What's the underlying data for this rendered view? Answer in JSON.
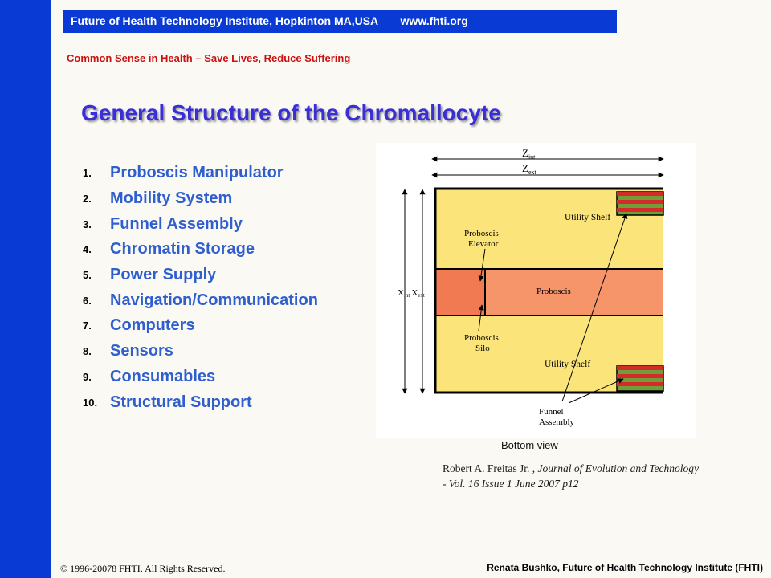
{
  "header": {
    "institute": "Future of Health Technology Institute, Hopkinton MA,USA",
    "url": "www.fhti.org",
    "tagline": "Common Sense in Health – Save Lives, Reduce Suffering"
  },
  "slide": {
    "title": "General Structure of the Chromallocyte",
    "items": [
      {
        "num": "1.",
        "label": "Proboscis Manipulator"
      },
      {
        "num": "2.",
        "label": "Mobility System"
      },
      {
        "num": "3.",
        "label": "Funnel Assembly"
      },
      {
        "num": "4.",
        "label": "Chromatin Storage"
      },
      {
        "num": "5.",
        "label": "Power Supply"
      },
      {
        "num": "6.",
        "label": "Navigation/Communication"
      },
      {
        "num": "7.",
        "label": "Computers"
      },
      {
        "num": "8.",
        "label": "Sensors"
      },
      {
        "num": "9.",
        "label": "Consumables"
      },
      {
        "num": "10.",
        "label": "Structural Support"
      }
    ]
  },
  "figure": {
    "z_int": "Z",
    "z_int_sub": "int",
    "z_ext": "Z",
    "z_ext_sub": "ext",
    "x_label": "X",
    "x_int_sub": "int",
    "x_label2": "X",
    "x_ext_sub": "ext",
    "utility_shelf_top": "Utility Shelf",
    "proboscis_elevator_1": "Proboscis",
    "proboscis_elevator_2": "Elevator",
    "proboscis": "Proboscis",
    "proboscis_silo_1": "Proboscis",
    "proboscis_silo_2": "Silo",
    "utility_shelf_bottom": "Utility Shelf",
    "funnel_1": "Funnel",
    "funnel_2": "Assembly",
    "caption": "Bottom view"
  },
  "citation": {
    "author": "Robert A. Freitas Jr. , ",
    "source": "Journal of Evolution and Technology - Vol. 16 Issue 1 June 2007 p12"
  },
  "footer": {
    "copyright": "© 1996-20078 FHTI. All Rights Reserved.",
    "credit": "Renata Bushko, Future of Health Technology Institute (FHTI)"
  },
  "colors": {
    "sidebar": "#0a3ad4",
    "title": "#3a2fd6",
    "item_text": "#2f5fcf",
    "tagline": "#cc1111",
    "shelf": "#fbe57a",
    "proboscis_band": "#f6956a",
    "elevator": "#f27a52",
    "stripe_red": "#d62a2a",
    "stripe_green": "#6f9e3a"
  }
}
